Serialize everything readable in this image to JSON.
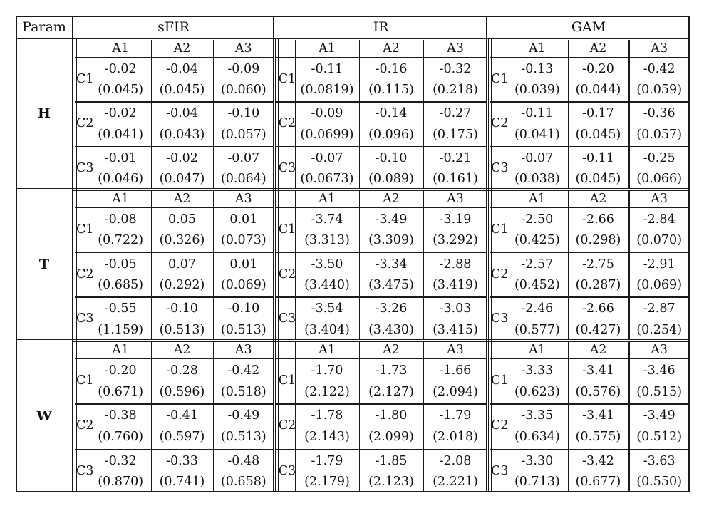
{
  "header": {
    "param_label": "Param",
    "models": [
      "sFIR",
      "IR",
      "GAM"
    ]
  },
  "col_labels": [
    "A1",
    "A2",
    "A3"
  ],
  "row_labels": [
    "C1",
    "C2",
    "C3"
  ],
  "params": [
    {
      "name": "H",
      "models": [
        {
          "model": "sFIR",
          "rows": [
            [
              [
                "-0.02",
                "(0.045)"
              ],
              [
                "-0.04",
                "(0.045)"
              ],
              [
                "-0.09",
                "(0.060)"
              ]
            ],
            [
              [
                "-0.02",
                "(0.041)"
              ],
              [
                "-0.04",
                "(0.043)"
              ],
              [
                "-0.10",
                "(0.057)"
              ]
            ],
            [
              [
                "-0.01",
                "(0.046)"
              ],
              [
                "-0.02",
                "(0.047)"
              ],
              [
                "-0.07",
                "(0.064)"
              ]
            ]
          ]
        },
        {
          "model": "IR",
          "rows": [
            [
              [
                "-0.11",
                "(0.0819)"
              ],
              [
                "-0.16",
                "(0.115)"
              ],
              [
                "-0.32",
                "(0.218)"
              ]
            ],
            [
              [
                "-0.09",
                "(0.0699)"
              ],
              [
                "-0.14",
                "(0.096)"
              ],
              [
                "-0.27",
                "(0.175)"
              ]
            ],
            [
              [
                "-0.07",
                "(0.0673)"
              ],
              [
                "-0.10",
                "(0.089)"
              ],
              [
                "-0.21",
                "(0.161)"
              ]
            ]
          ]
        },
        {
          "model": "GAM",
          "rows": [
            [
              [
                "-0.13",
                "(0.039)"
              ],
              [
                "-0.20",
                "(0.044)"
              ],
              [
                "-0.42",
                "(0.059)"
              ]
            ],
            [
              [
                "-0.11",
                "(0.041)"
              ],
              [
                "-0.17",
                "(0.045)"
              ],
              [
                "-0.36",
                "(0.057)"
              ]
            ],
            [
              [
                "-0.07",
                "(0.038)"
              ],
              [
                "-0.11",
                "(0.045)"
              ],
              [
                "-0.25",
                "(0.066)"
              ]
            ]
          ]
        }
      ]
    },
    {
      "name": "T",
      "models": [
        {
          "model": "sFIR",
          "rows": [
            [
              [
                "-0.08",
                "(0.722)"
              ],
              [
                "0.05",
                "(0.326)"
              ],
              [
                "0.01",
                "(0.073)"
              ]
            ],
            [
              [
                "-0.05",
                "(0.685)"
              ],
              [
                "0.07",
                "(0.292)"
              ],
              [
                "0.01",
                "(0.069)"
              ]
            ],
            [
              [
                "-0.55",
                "(1.159)"
              ],
              [
                "-0.10",
                "(0.513)"
              ],
              [
                "-0.10",
                "(0.513)"
              ]
            ]
          ]
        },
        {
          "model": "IR",
          "rows": [
            [
              [
                "-3.74",
                "(3.313)"
              ],
              [
                "-3.49",
                "(3.309)"
              ],
              [
                "-3.19",
                "(3.292)"
              ]
            ],
            [
              [
                "-3.50",
                "(3.440)"
              ],
              [
                "-3.34",
                "(3.475)"
              ],
              [
                "-2.88",
                "(3.419)"
              ]
            ],
            [
              [
                "-3.54",
                "(3.404)"
              ],
              [
                "-3.26",
                "(3.430)"
              ],
              [
                "-3.03",
                "(3.415)"
              ]
            ]
          ]
        },
        {
          "model": "GAM",
          "rows": [
            [
              [
                "-2.50",
                "(0.425)"
              ],
              [
                "-2.66",
                "(0.298)"
              ],
              [
                "-2.84",
                "(0.070)"
              ]
            ],
            [
              [
                "-2.57",
                "(0.452)"
              ],
              [
                "-2.75",
                "(0.287)"
              ],
              [
                "-2.91",
                "(0.069)"
              ]
            ],
            [
              [
                "-2.46",
                "(0.577)"
              ],
              [
                "-2.66",
                "(0.427)"
              ],
              [
                "-2.87",
                "(0.254)"
              ]
            ]
          ]
        }
      ]
    },
    {
      "name": "W",
      "models": [
        {
          "model": "sFIR",
          "rows": [
            [
              [
                "-0.20",
                "(0.671)"
              ],
              [
                "-0.28",
                "(0.596)"
              ],
              [
                "-0.42",
                "(0.518)"
              ]
            ],
            [
              [
                "-0.38",
                "(0.760)"
              ],
              [
                "-0.41",
                "(0.597)"
              ],
              [
                "-0.49",
                "(0.513)"
              ]
            ],
            [
              [
                "-0.32",
                "(0.870)"
              ],
              [
                "-0.33",
                "(0.741)"
              ],
              [
                "-0.48",
                "(0.658)"
              ]
            ]
          ]
        },
        {
          "model": "IR",
          "rows": [
            [
              [
                "-1.70",
                "(2.122)"
              ],
              [
                "-1.73",
                "(2.127)"
              ],
              [
                "-1.66",
                "(2.094)"
              ]
            ],
            [
              [
                "-1.78",
                "(2.143)"
              ],
              [
                "-1.80",
                "(2.099)"
              ],
              [
                "-1.79",
                "(2.018)"
              ]
            ],
            [
              [
                "-1.79",
                "(2.179)"
              ],
              [
                "-1.85",
                "(2.123)"
              ],
              [
                "-2.08",
                "(2.221)"
              ]
            ]
          ]
        },
        {
          "model": "GAM",
          "rows": [
            [
              [
                "-3.33",
                "(0.623)"
              ],
              [
                "-3.41",
                "(0.576)"
              ],
              [
                "-3.46",
                "(0.515)"
              ]
            ],
            [
              [
                "-3.35",
                "(0.634)"
              ],
              [
                "-3.41",
                "(0.575)"
              ],
              [
                "-3.49",
                "(0.512)"
              ]
            ],
            [
              [
                "-3.30",
                "(0.713)"
              ],
              [
                "-3.42",
                "(0.677)"
              ],
              [
                "-3.63",
                "(0.550)"
              ]
            ]
          ]
        }
      ]
    }
  ]
}
